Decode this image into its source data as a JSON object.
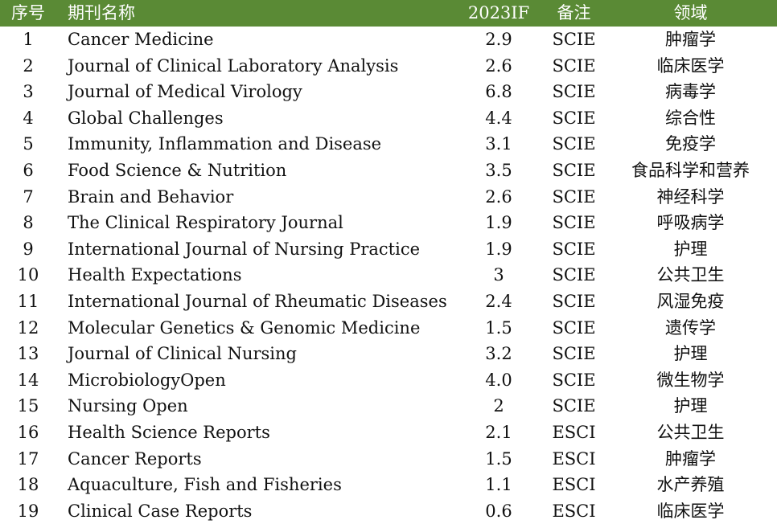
{
  "header": {
    "no": "序号",
    "name": "期刊名称",
    "if": "2023IF",
    "note": "备注",
    "field": "领域"
  },
  "rows": [
    {
      "no": "1",
      "name": "Cancer Medicine",
      "if": "2.9",
      "note": "SCIE",
      "field": "肿瘤学"
    },
    {
      "no": "2",
      "name": "Journal of Clinical Laboratory Analysis",
      "if": "2.6",
      "note": "SCIE",
      "field": "临床医学"
    },
    {
      "no": "3",
      "name": "Journal of Medical Virology",
      "if": "6.8",
      "note": "SCIE",
      "field": "病毒学"
    },
    {
      "no": "4",
      "name": "Global Challenges",
      "if": "4.4",
      "note": "SCIE",
      "field": "综合性"
    },
    {
      "no": "5",
      "name": "Immunity, Inflammation and Disease",
      "if": "3.1",
      "note": "SCIE",
      "field": "免疫学"
    },
    {
      "no": "6",
      "name": "Food Science & Nutrition",
      "if": "3.5",
      "note": "SCIE",
      "field": "食品科学和营养"
    },
    {
      "no": "7",
      "name": "Brain and Behavior",
      "if": "2.6",
      "note": "SCIE",
      "field": "神经科学"
    },
    {
      "no": "8",
      "name": "The Clinical Respiratory Journal",
      "if": "1.9",
      "note": "SCIE",
      "field": "呼吸病学"
    },
    {
      "no": "9",
      "name": "International Journal of Nursing Practice",
      "if": "1.9",
      "note": "SCIE",
      "field": "护理"
    },
    {
      "no": "10",
      "name": "Health Expectations",
      "if": "3",
      "note": "SCIE",
      "field": "公共卫生"
    },
    {
      "no": "11",
      "name": "International Journal of Rheumatic Diseases",
      "if": "2.4",
      "note": "SCIE",
      "field": "风湿免疫"
    },
    {
      "no": "12",
      "name": "Molecular Genetics & Genomic Medicine",
      "if": "1.5",
      "note": "SCIE",
      "field": "遗传学"
    },
    {
      "no": "13",
      "name": "Journal of Clinical Nursing",
      "if": "3.2",
      "note": "SCIE",
      "field": "护理"
    },
    {
      "no": "14",
      "name": "MicrobiologyOpen",
      "if": "4.0",
      "note": "SCIE",
      "field": "微生物学"
    },
    {
      "no": "15",
      "name": "Nursing Open",
      "if": "2",
      "note": "SCIE",
      "field": "护理"
    },
    {
      "no": "16",
      "name": "Health Science Reports",
      "if": "2.1",
      "note": "ESCI",
      "field": "公共卫生"
    },
    {
      "no": "17",
      "name": "Cancer Reports",
      "if": "1.5",
      "note": "ESCI",
      "field": "肿瘤学"
    },
    {
      "no": "18",
      "name": "Aquaculture, Fish and Fisheries",
      "if": "1.1",
      "note": "ESCI",
      "field": "水产养殖"
    },
    {
      "no": "19",
      "name": "Clinical Case Reports",
      "if": "0.6",
      "note": "ESCI",
      "field": "临床医学"
    }
  ],
  "colors": {
    "header_bg": "#5a8a35",
    "header_text": "#ffffff",
    "body_text": "#111111"
  }
}
